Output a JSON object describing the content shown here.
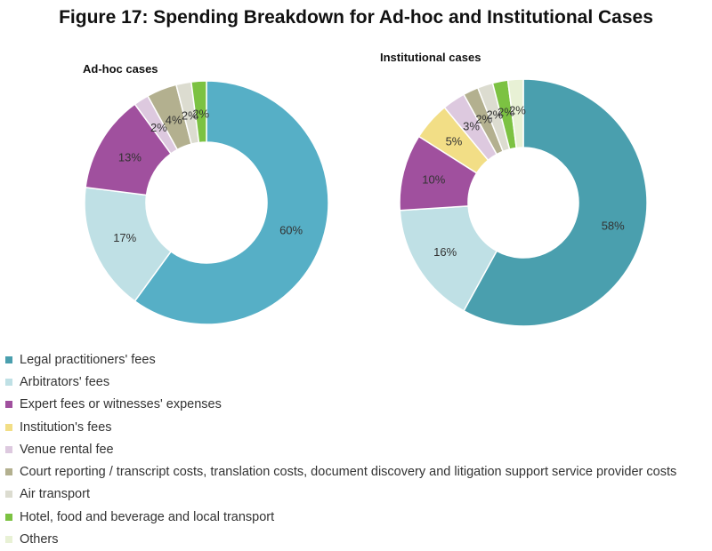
{
  "figure_title": "Figure 17: Spending Breakdown for Ad-hoc and Institutional Cases",
  "legend": [
    {
      "label": "Legal practitioners' fees",
      "color": "#4a9fae"
    },
    {
      "label": "Arbitrators' fees",
      "color": "#bfe0e5"
    },
    {
      "label": "Expert fees or witnesses' expenses",
      "color": "#a0509e"
    },
    {
      "label": "Institution's fees",
      "color": "#f2de86"
    },
    {
      "label": "Venue rental fee",
      "color": "#ddc9df"
    },
    {
      "label": "Court reporting / transcript costs, translation costs, document discovery and litigation support service provider costs",
      "color": "#b3b08f"
    },
    {
      "label": "Air transport",
      "color": "#dcdcd0"
    },
    {
      "label": "Hotel, food and beverage and local transport",
      "color": "#7cc242"
    },
    {
      "label": "Others",
      "color": "#e8f1d5"
    }
  ],
  "chart_data": [
    {
      "type": "pie",
      "title": "Ad-hoc cases",
      "slices": [
        {
          "label": "Legal practitioners' fees",
          "value": 60,
          "display": "60%",
          "color": "#56afc6"
        },
        {
          "label": "Arbitrators' fees",
          "value": 17,
          "display": "17%",
          "color": "#bfe0e5"
        },
        {
          "label": "Expert fees or witnesses' expenses",
          "value": 13,
          "display": "13%",
          "color": "#a0509e"
        },
        {
          "label": "Venue rental fee",
          "value": 2,
          "display": "2%",
          "color": "#ddc9df"
        },
        {
          "label": "Court reporting / transcript costs, translation costs, document discovery and litigation support service provider costs",
          "value": 4,
          "display": "4%",
          "color": "#b3b08f"
        },
        {
          "label": "Air transport",
          "value": 2,
          "display": "2%",
          "color": "#dcdcd0"
        },
        {
          "label": "Hotel, food and beverage and local transport",
          "value": 2,
          "display": "2%",
          "color": "#7cc242"
        }
      ]
    },
    {
      "type": "pie",
      "title": "Institutional cases",
      "slices": [
        {
          "label": "Legal practitioners' fees",
          "value": 58,
          "display": "58%",
          "color": "#4a9fae"
        },
        {
          "label": "Arbitrators' fees",
          "value": 16,
          "display": "16%",
          "color": "#bfe0e5"
        },
        {
          "label": "Expert fees or witnesses' expenses",
          "value": 10,
          "display": "10%",
          "color": "#a0509e"
        },
        {
          "label": "Institution's fees",
          "value": 5,
          "display": "5%",
          "color": "#f2de86"
        },
        {
          "label": "Venue rental fee",
          "value": 3,
          "display": "3%",
          "color": "#ddc9df"
        },
        {
          "label": "Court reporting / transcript costs, translation costs, document discovery and litigation support service provider costs",
          "value": 2,
          "display": "2%",
          "color": "#b3b08f"
        },
        {
          "label": "Air transport",
          "value": 2,
          "display": "2%",
          "color": "#dcdcd0"
        },
        {
          "label": "Hotel, food and beverage and local transport",
          "value": 2,
          "display": "2%",
          "color": "#7cc242"
        },
        {
          "label": "Others",
          "value": 2,
          "display": "2%",
          "color": "#e8f1d5"
        }
      ]
    }
  ]
}
